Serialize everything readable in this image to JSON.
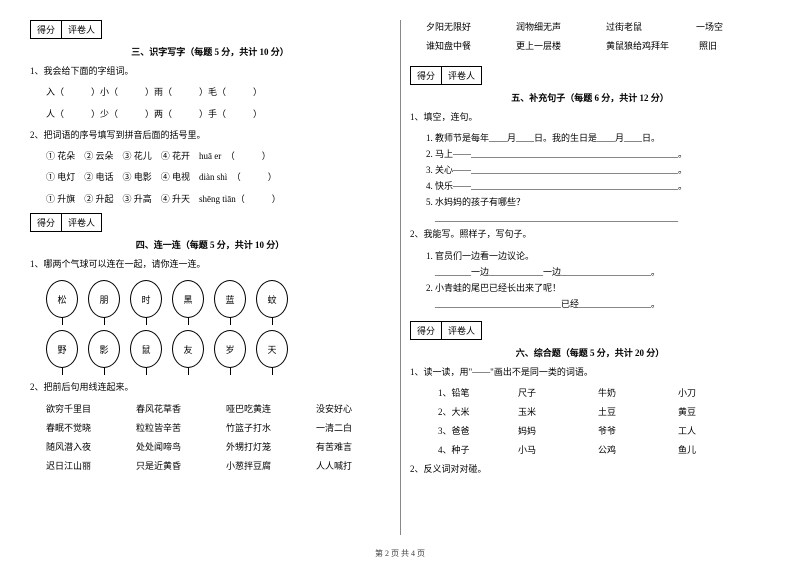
{
  "left": {
    "scorebox": {
      "a": "得分",
      "b": "评卷人"
    },
    "sec3": {
      "title": "三、识字写字（每题 5 分，共计 10 分）",
      "q1": "1、我会给下面的字组词。",
      "q1_line1": "入（　　　）小（　　　）雨（　　　）毛（　　　）",
      "q1_line2": "人（　　　）少（　　　）两（　　　）手（　　　）",
      "q2": "2、把词语的序号填写到拼音后面的括号里。",
      "q2_1": "① 花朵　② 云朵　③ 花儿　④ 花开　huā er　（　　　）",
      "q2_2": "① 电灯　② 电话　③ 电影　④ 电视　diàn shì　（　　　）",
      "q2_3": "① 升旗　② 升起　③ 升高　④ 升天　shēng tiān（　　　）"
    },
    "scorebox2": {
      "a": "得分",
      "b": "评卷人"
    },
    "sec4": {
      "title": "四、连一连（每题 5 分，共计 10 分）",
      "q1": "1、哪两个气球可以连在一起，请你连一连。",
      "balloons_top": [
        "松",
        "朋",
        "时",
        "黑",
        "蓝",
        "蚊"
      ],
      "balloons_bot": [
        "野",
        "影",
        "鼠",
        "友",
        "岁",
        "天"
      ],
      "q2": "2、把前后句用线连起来。",
      "rows": [
        [
          "欲穷千里目",
          "春风花草香",
          "哑巴吃黄连",
          "没安好心"
        ],
        [
          "春眠不觉晓",
          "粒粒皆辛苦",
          "竹篮子打水",
          "一清二白"
        ],
        [
          "随风潜入夜",
          "处处闻啼鸟",
          "外甥打灯笼",
          "有苦难言"
        ],
        [
          "迟日江山丽",
          "只是近黄昏",
          "小葱拌豆腐",
          "人人喊打"
        ]
      ]
    }
  },
  "right": {
    "top_rows": [
      [
        "夕阳无限好",
        "润物细无声",
        "过街老鼠",
        "一场空"
      ],
      [
        "谁知盘中餐",
        "更上一层楼",
        "黄鼠狼给鸡拜年",
        "照旧"
      ]
    ],
    "scorebox": {
      "a": "得分",
      "b": "评卷人"
    },
    "sec5": {
      "title": "五、补充句子（每题 6 分，共计 12 分）",
      "q1": "1、填空，连句。",
      "q1_items": [
        "1. 教师节是每年____月____日。我的生日是____月____日。",
        "2. 马上——______________________________________________。",
        "3. 关心——______________________________________________。",
        "4. 快乐——______________________________________________。",
        "5. 水妈妈的孩子有哪些？",
        "　______________________________________________________"
      ],
      "q2": "2、我能写。照样子，写句子。",
      "q2_items": [
        "1. 官员们一边看一边议论。",
        "　________一边____________一边____________________。",
        "2. 小青蛙的尾巴已经长出来了呢！",
        "　____________________________已经________________。"
      ]
    },
    "scorebox2": {
      "a": "得分",
      "b": "评卷人"
    },
    "sec6": {
      "title": "六、综合题（每题 5 分，共计 20 分）",
      "q1": "1、读一读，用\"——\"画出不是同一类的词语。",
      "q1_rows": [
        [
          "1、铅笔",
          "尺子",
          "牛奶",
          "小刀"
        ],
        [
          "2、大米",
          "玉米",
          "土豆",
          "黄豆"
        ],
        [
          "3、爸爸",
          "妈妈",
          "爷爷",
          "工人"
        ],
        [
          "4、种子",
          "小马",
          "公鸡",
          "鱼儿"
        ]
      ],
      "q2": "2、反义词对对碰。"
    }
  },
  "footer": "第 2 页 共 4 页"
}
